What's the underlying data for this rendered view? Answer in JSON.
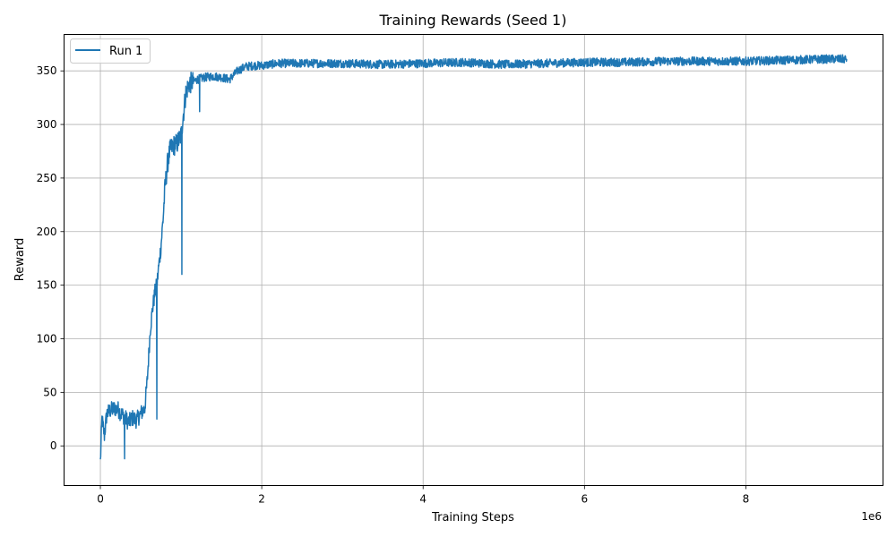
{
  "chart_data": {
    "type": "line",
    "title": "Training Rewards (Seed 1)",
    "xlabel": "Training Steps",
    "ylabel": "Reward",
    "x_offset_label": "1e6",
    "xlim": [
      -0.45,
      9.7
    ],
    "ylim": [
      -37,
      384
    ],
    "xticks": [
      0,
      2,
      4,
      6,
      8
    ],
    "yticks": [
      0,
      50,
      100,
      150,
      200,
      250,
      300,
      350
    ],
    "grid": true,
    "legend": "top-left",
    "colors": {
      "series": "#1f77b4",
      "grid": "#b0b0b0"
    },
    "series": [
      {
        "name": "Run 1",
        "points": [
          [
            0.0,
            -15
          ],
          [
            0.02,
            25
          ],
          [
            0.05,
            10
          ],
          [
            0.08,
            30
          ],
          [
            0.12,
            33
          ],
          [
            0.18,
            35
          ],
          [
            0.22,
            34
          ],
          [
            0.26,
            30
          ],
          [
            0.3,
            27
          ],
          [
            0.35,
            22
          ],
          [
            0.4,
            26
          ],
          [
            0.45,
            24
          ],
          [
            0.5,
            30
          ],
          [
            0.55,
            35
          ],
          [
            0.58,
            60
          ],
          [
            0.6,
            85
          ],
          [
            0.62,
            110
          ],
          [
            0.65,
            130
          ],
          [
            0.68,
            145
          ],
          [
            0.7,
            150
          ],
          [
            0.72,
            165
          ],
          [
            0.75,
            185
          ],
          [
            0.78,
            215
          ],
          [
            0.8,
            240
          ],
          [
            0.83,
            262
          ],
          [
            0.86,
            275
          ],
          [
            0.9,
            280
          ],
          [
            0.95,
            282
          ],
          [
            1.0,
            290
          ],
          [
            1.03,
            310
          ],
          [
            1.06,
            330
          ],
          [
            1.1,
            338
          ],
          [
            1.15,
            340
          ],
          [
            1.2,
            342
          ],
          [
            1.3,
            344
          ],
          [
            1.4,
            345
          ],
          [
            1.5,
            344
          ],
          [
            1.6,
            342
          ],
          [
            1.7,
            350
          ],
          [
            1.8,
            354
          ],
          [
            1.9,
            355
          ],
          [
            2.0,
            355
          ],
          [
            2.2,
            357
          ],
          [
            2.5,
            357
          ],
          [
            3.0,
            357
          ],
          [
            3.5,
            356
          ],
          [
            4.0,
            357
          ],
          [
            4.5,
            358
          ],
          [
            5.0,
            356
          ],
          [
            5.5,
            357
          ],
          [
            6.0,
            358
          ],
          [
            6.5,
            358
          ],
          [
            7.0,
            359
          ],
          [
            7.5,
            359
          ],
          [
            8.0,
            359
          ],
          [
            8.5,
            360
          ],
          [
            9.0,
            361
          ],
          [
            9.25,
            361
          ]
        ],
        "dips": [
          [
            0.3,
            -12
          ],
          [
            0.7,
            25
          ],
          [
            1.01,
            160
          ],
          [
            1.23,
            312
          ]
        ]
      }
    ]
  }
}
